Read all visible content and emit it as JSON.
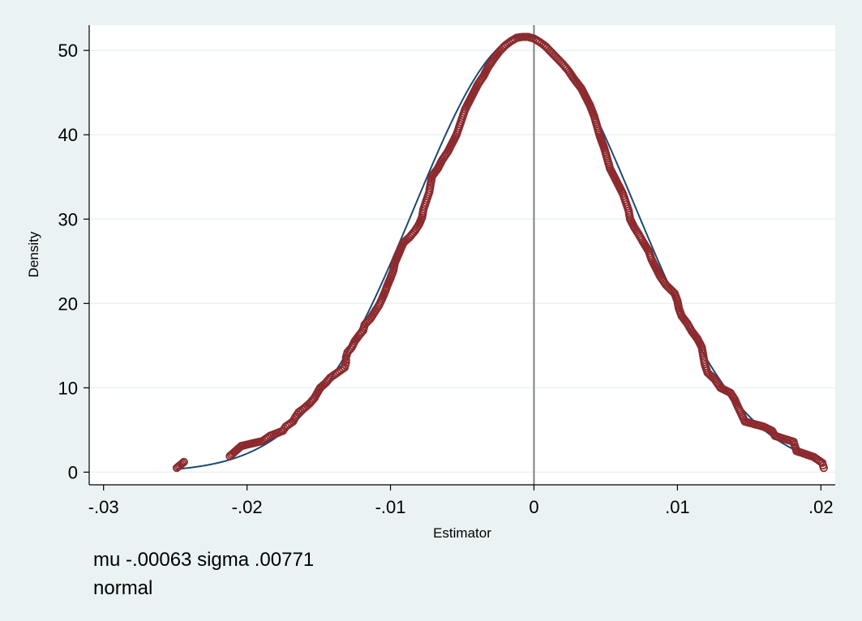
{
  "chart_data": {
    "type": "scatter",
    "xlabel": "Estimator",
    "ylabel": "Density",
    "xlim": [
      -0.031,
      0.021
    ],
    "ylim": [
      -1.5,
      53
    ],
    "x_ticks": [
      {
        "value": -0.03,
        "label": "-.03"
      },
      {
        "value": -0.02,
        "label": "-.02"
      },
      {
        "value": -0.01,
        "label": "-.01"
      },
      {
        "value": 0,
        "label": "0"
      },
      {
        "value": 0.01,
        "label": ".01"
      },
      {
        "value": 0.02,
        "label": ".02"
      }
    ],
    "y_ticks": [
      {
        "value": 0,
        "label": "0"
      },
      {
        "value": 10,
        "label": "10"
      },
      {
        "value": 20,
        "label": "20"
      },
      {
        "value": 30,
        "label": "30"
      },
      {
        "value": 40,
        "label": "40"
      },
      {
        "value": 50,
        "label": "50"
      }
    ],
    "grid": true,
    "reference_line_x": 0,
    "normal_curve": {
      "mu": -0.00063,
      "sigma": 0.00771,
      "x_range": [
        -0.0249,
        0.0202
      ]
    },
    "colors": {
      "markers": "#8c2a2e",
      "curve": "#1a4a72",
      "reference_line": "#808080",
      "grid": "#eaf2f3",
      "plot_background": "#ffffff",
      "figure_background": "#eaf2f3"
    },
    "points": [
      {
        "x": -0.0249,
        "y": 0.5
      },
      {
        "x": -0.0244,
        "y": 1.2
      },
      {
        "x": -0.0212,
        "y": 1.9
      },
      {
        "x": -0.0208,
        "y": 2.5
      },
      {
        "x": -0.0204,
        "y": 3.1
      },
      {
        "x": -0.0189,
        "y": 3.7
      },
      {
        "x": -0.0184,
        "y": 4.3
      },
      {
        "x": -0.0175,
        "y": 4.9
      },
      {
        "x": -0.0173,
        "y": 5.4
      },
      {
        "x": -0.0168,
        "y": 6.0
      },
      {
        "x": -0.0166,
        "y": 6.6
      },
      {
        "x": -0.0164,
        "y": 7.1
      },
      {
        "x": -0.016,
        "y": 7.6
      },
      {
        "x": -0.0156,
        "y": 8.2
      },
      {
        "x": -0.0153,
        "y": 8.8
      },
      {
        "x": -0.0151,
        "y": 9.4
      },
      {
        "x": -0.0149,
        "y": 10.0
      },
      {
        "x": -0.0145,
        "y": 10.6
      },
      {
        "x": -0.0142,
        "y": 11.2
      },
      {
        "x": -0.0137,
        "y": 11.8
      },
      {
        "x": -0.0132,
        "y": 12.4
      },
      {
        "x": -0.0131,
        "y": 13.0
      },
      {
        "x": -0.0131,
        "y": 13.6
      },
      {
        "x": -0.013,
        "y": 14.2
      },
      {
        "x": -0.0127,
        "y": 14.8
      },
      {
        "x": -0.0125,
        "y": 15.5
      },
      {
        "x": -0.0122,
        "y": 16.2
      },
      {
        "x": -0.0119,
        "y": 16.8
      },
      {
        "x": -0.0118,
        "y": 17.5
      },
      {
        "x": -0.0114,
        "y": 18.2
      },
      {
        "x": -0.0111,
        "y": 19.0
      },
      {
        "x": -0.0108,
        "y": 19.8
      },
      {
        "x": -0.0106,
        "y": 20.5
      },
      {
        "x": -0.0104,
        "y": 21.3
      },
      {
        "x": -0.0102,
        "y": 22.2
      },
      {
        "x": -0.01,
        "y": 23.0
      },
      {
        "x": -0.0098,
        "y": 23.9
      },
      {
        "x": -0.0097,
        "y": 24.8
      },
      {
        "x": -0.0095,
        "y": 25.6
      },
      {
        "x": -0.0093,
        "y": 26.4
      },
      {
        "x": -0.0091,
        "y": 27.2
      },
      {
        "x": -0.0087,
        "y": 27.8
      },
      {
        "x": -0.0083,
        "y": 28.6
      },
      {
        "x": -0.008,
        "y": 29.4
      },
      {
        "x": -0.0078,
        "y": 30.2
      },
      {
        "x": -0.0077,
        "y": 31.2
      },
      {
        "x": -0.0075,
        "y": 32.2
      },
      {
        "x": -0.0073,
        "y": 33.2
      },
      {
        "x": -0.0072,
        "y": 34.2
      },
      {
        "x": -0.0071,
        "y": 35.1
      },
      {
        "x": -0.0067,
        "y": 36.0
      },
      {
        "x": -0.0064,
        "y": 37.0
      },
      {
        "x": -0.006,
        "y": 38.0
      },
      {
        "x": -0.0057,
        "y": 39.0
      },
      {
        "x": -0.0054,
        "y": 40.0
      },
      {
        "x": -0.0052,
        "y": 41.0
      },
      {
        "x": -0.005,
        "y": 42.0
      },
      {
        "x": -0.0048,
        "y": 43.0
      },
      {
        "x": -0.0045,
        "y": 44.0
      },
      {
        "x": -0.0042,
        "y": 45.0
      },
      {
        "x": -0.0039,
        "y": 46.0
      },
      {
        "x": -0.0035,
        "y": 47.0
      },
      {
        "x": -0.0032,
        "y": 48.0
      },
      {
        "x": -0.0028,
        "y": 49.0
      },
      {
        "x": -0.0024,
        "y": 49.9
      },
      {
        "x": -0.002,
        "y": 50.6
      },
      {
        "x": -0.0016,
        "y": 51.1
      },
      {
        "x": -0.0012,
        "y": 51.5
      },
      {
        "x": -0.0008,
        "y": 51.6
      },
      {
        "x": -0.0004,
        "y": 51.6
      },
      {
        "x": 0.0,
        "y": 51.4
      },
      {
        "x": 0.0004,
        "y": 51.0
      },
      {
        "x": 0.0008,
        "y": 50.5
      },
      {
        "x": 0.0012,
        "y": 49.8
      },
      {
        "x": 0.0016,
        "y": 49.1
      },
      {
        "x": 0.002,
        "y": 48.4
      },
      {
        "x": 0.0024,
        "y": 47.6
      },
      {
        "x": 0.0028,
        "y": 46.6
      },
      {
        "x": 0.0033,
        "y": 45.5
      },
      {
        "x": 0.0036,
        "y": 44.5
      },
      {
        "x": 0.0039,
        "y": 43.5
      },
      {
        "x": 0.0042,
        "y": 42.2
      },
      {
        "x": 0.0044,
        "y": 41.0
      },
      {
        "x": 0.0046,
        "y": 39.8
      },
      {
        "x": 0.0049,
        "y": 38.4
      },
      {
        "x": 0.0051,
        "y": 37.2
      },
      {
        "x": 0.0053,
        "y": 36.0
      },
      {
        "x": 0.0056,
        "y": 35.0
      },
      {
        "x": 0.0059,
        "y": 34.0
      },
      {
        "x": 0.0062,
        "y": 33.0
      },
      {
        "x": 0.0064,
        "y": 32.0
      },
      {
        "x": 0.0066,
        "y": 31.0
      },
      {
        "x": 0.0067,
        "y": 30.0
      },
      {
        "x": 0.007,
        "y": 29.0
      },
      {
        "x": 0.0073,
        "y": 28.2
      },
      {
        "x": 0.0076,
        "y": 27.3
      },
      {
        "x": 0.008,
        "y": 26.2
      },
      {
        "x": 0.0082,
        "y": 25.2
      },
      {
        "x": 0.0085,
        "y": 24.2
      },
      {
        "x": 0.0088,
        "y": 23.2
      },
      {
        "x": 0.0092,
        "y": 22.2
      },
      {
        "x": 0.0098,
        "y": 21.2
      },
      {
        "x": 0.01,
        "y": 20.3
      },
      {
        "x": 0.0101,
        "y": 19.4
      },
      {
        "x": 0.0103,
        "y": 18.5
      },
      {
        "x": 0.0107,
        "y": 17.6
      },
      {
        "x": 0.011,
        "y": 16.7
      },
      {
        "x": 0.0114,
        "y": 15.8
      },
      {
        "x": 0.0117,
        "y": 14.8
      },
      {
        "x": 0.0118,
        "y": 13.8
      },
      {
        "x": 0.0119,
        "y": 12.8
      },
      {
        "x": 0.0121,
        "y": 11.8
      },
      {
        "x": 0.0126,
        "y": 11.0
      },
      {
        "x": 0.013,
        "y": 10.0
      },
      {
        "x": 0.0137,
        "y": 9.4
      },
      {
        "x": 0.014,
        "y": 8.6
      },
      {
        "x": 0.0142,
        "y": 7.8
      },
      {
        "x": 0.0144,
        "y": 7.1
      },
      {
        "x": 0.0147,
        "y": 6.0
      },
      {
        "x": 0.016,
        "y": 5.4
      },
      {
        "x": 0.0166,
        "y": 4.9
      },
      {
        "x": 0.0168,
        "y": 4.3
      },
      {
        "x": 0.0181,
        "y": 3.6
      },
      {
        "x": 0.0182,
        "y": 3.0
      },
      {
        "x": 0.0183,
        "y": 2.5
      },
      {
        "x": 0.0195,
        "y": 1.8
      },
      {
        "x": 0.0201,
        "y": 1.1
      },
      {
        "x": 0.0202,
        "y": 0.5
      }
    ]
  },
  "notes": {
    "line1": "mu -.00063 sigma .00771",
    "line2": "normal"
  }
}
